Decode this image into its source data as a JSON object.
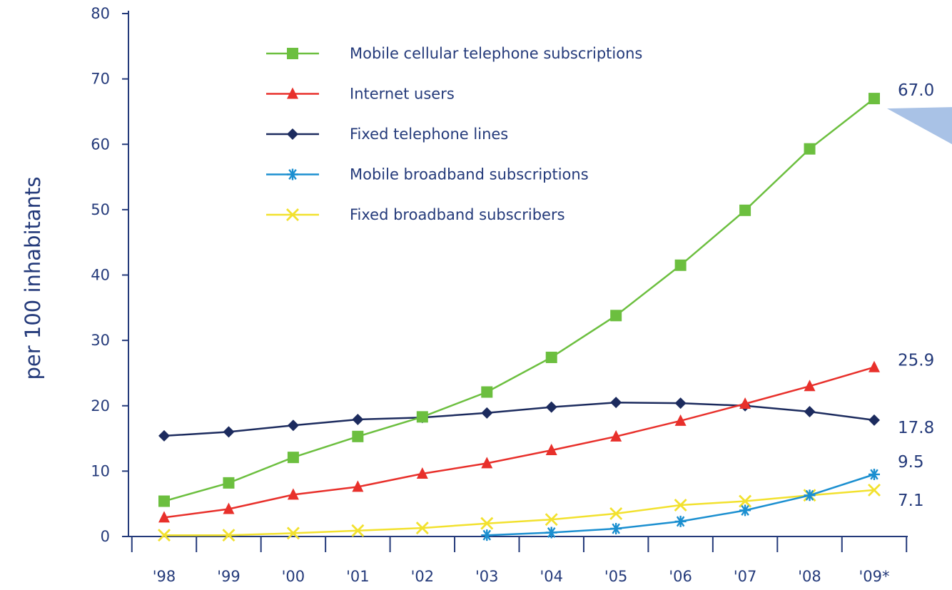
{
  "chart_data": {
    "type": "line",
    "title": "",
    "xlabel": "",
    "ylabel": "per 100 inhabitants",
    "ylim": [
      0,
      80
    ],
    "yticks": [
      "0",
      "10",
      "20",
      "30",
      "40",
      "50",
      "60",
      "70",
      "80"
    ],
    "categories": [
      "'98",
      "'99",
      "'00",
      "'01",
      "'02",
      "'03",
      "'04",
      "'05",
      "'06",
      "'07",
      "'08",
      "'09*"
    ],
    "grid": false,
    "legend_position": "top-left",
    "series": [
      {
        "name": "Mobile cellular telephone subscriptions",
        "marker": "square",
        "color": "#6cbf3f",
        "values": [
          5.4,
          8.2,
          12.1,
          15.3,
          18.3,
          22.1,
          27.4,
          33.8,
          41.5,
          49.9,
          59.3,
          67.0
        ],
        "end_label": "67.0"
      },
      {
        "name": "Internet users",
        "marker": "triangle",
        "color": "#e8302b",
        "values": [
          2.9,
          4.2,
          6.4,
          7.6,
          9.6,
          11.2,
          13.2,
          15.3,
          17.7,
          20.3,
          23.0,
          25.9
        ],
        "end_label": "25.9"
      },
      {
        "name": "Fixed telephone lines",
        "marker": "diamond",
        "color": "#1c2b5e",
        "values": [
          15.4,
          16.0,
          17.0,
          17.9,
          18.2,
          18.9,
          19.8,
          20.5,
          20.4,
          20.0,
          19.1,
          17.8
        ],
        "end_label": "17.8"
      },
      {
        "name": "Mobile broadband subscriptions",
        "marker": "asterisk",
        "color": "#1b8fd0",
        "values": [
          null,
          null,
          null,
          null,
          null,
          0.2,
          0.6,
          1.2,
          2.3,
          4.0,
          6.3,
          9.5
        ],
        "end_label": "9.5"
      },
      {
        "name": "Fixed broadband subscribers",
        "marker": "x",
        "color": "#f2e12e",
        "values": [
          0.2,
          0.2,
          0.5,
          0.9,
          1.3,
          2.0,
          2.6,
          3.5,
          4.8,
          5.4,
          6.3,
          7.1
        ],
        "end_label": "7.1"
      }
    ]
  }
}
